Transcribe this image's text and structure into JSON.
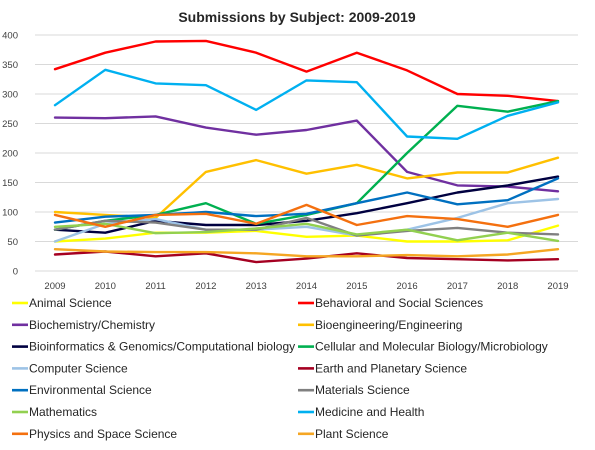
{
  "chart_data": {
    "type": "line",
    "title": "Submissions by Subject: 2009-2019",
    "xlabel": "",
    "ylabel": "",
    "x": [
      "2009",
      "2010",
      "2011",
      "2012",
      "2013",
      "2014",
      "2015",
      "2016",
      "2017",
      "2018",
      "2019"
    ],
    "ylim": [
      0,
      400
    ],
    "yticks": [
      "0",
      "50",
      "100",
      "150",
      "200",
      "250",
      "300",
      "350",
      "400"
    ],
    "grid": true,
    "legend_position": "bottom",
    "series": [
      {
        "name": "Animal Science",
        "color": "#ffff00",
        "values": [
          50,
          55,
          65,
          65,
          68,
          58,
          60,
          50,
          50,
          52,
          77
        ]
      },
      {
        "name": "Behavioral and Social Sciences",
        "color": "#ff0000",
        "values": [
          342,
          370,
          389,
          390,
          370,
          338,
          370,
          340,
          300,
          297,
          288
        ]
      },
      {
        "name": "Biochemistry/Chemistry",
        "color": "#7030a0",
        "values": [
          260,
          259,
          262,
          243,
          231,
          239,
          255,
          168,
          145,
          143,
          135
        ]
      },
      {
        "name": "Bioengineering/Engineering",
        "color": "#ffc000",
        "values": [
          100,
          95,
          90,
          168,
          188,
          165,
          180,
          157,
          167,
          167,
          192
        ]
      },
      {
        "name": "Bioinformatics & Genomics/Computational biology",
        "color": "#000040",
        "values": [
          70,
          65,
          85,
          78,
          78,
          85,
          98,
          115,
          133,
          145,
          160
        ]
      },
      {
        "name": "Cellular and Molecular Biology/Microbiology",
        "color": "#00b050",
        "values": [
          70,
          85,
          95,
          115,
          80,
          95,
          115,
          200,
          280,
          270,
          288
        ]
      },
      {
        "name": "Computer Science",
        "color": "#9dc3e6",
        "values": [
          50,
          80,
          88,
          70,
          70,
          75,
          60,
          70,
          90,
          115,
          122
        ]
      },
      {
        "name": "Earth and Planetary Science",
        "color": "#a50021",
        "values": [
          28,
          33,
          25,
          30,
          15,
          21,
          30,
          22,
          20,
          18,
          20
        ]
      },
      {
        "name": "Environmental Science",
        "color": "#0070c0",
        "values": [
          82,
          92,
          95,
          100,
          93,
          97,
          115,
          133,
          113,
          120,
          157
        ]
      },
      {
        "name": "Materials Science",
        "color": "#808080",
        "values": [
          70,
          85,
          82,
          70,
          70,
          90,
          60,
          68,
          73,
          65,
          62
        ]
      },
      {
        "name": "Mathematics",
        "color": "#92d050",
        "values": [
          75,
          80,
          64,
          66,
          72,
          80,
          62,
          70,
          52,
          65,
          51
        ]
      },
      {
        "name": "Medicine and Health",
        "color": "#00b0f0",
        "values": [
          281,
          341,
          318,
          315,
          273,
          323,
          320,
          228,
          224,
          263,
          286
        ]
      },
      {
        "name": "Physics and Space Science",
        "color": "#f4700f",
        "values": [
          95,
          75,
          95,
          97,
          80,
          112,
          78,
          93,
          88,
          75,
          95
        ]
      },
      {
        "name": "Plant Science",
        "color": "#f5a623",
        "values": [
          37,
          33,
          32,
          32,
          30,
          25,
          25,
          27,
          25,
          28,
          37
        ]
      }
    ]
  }
}
